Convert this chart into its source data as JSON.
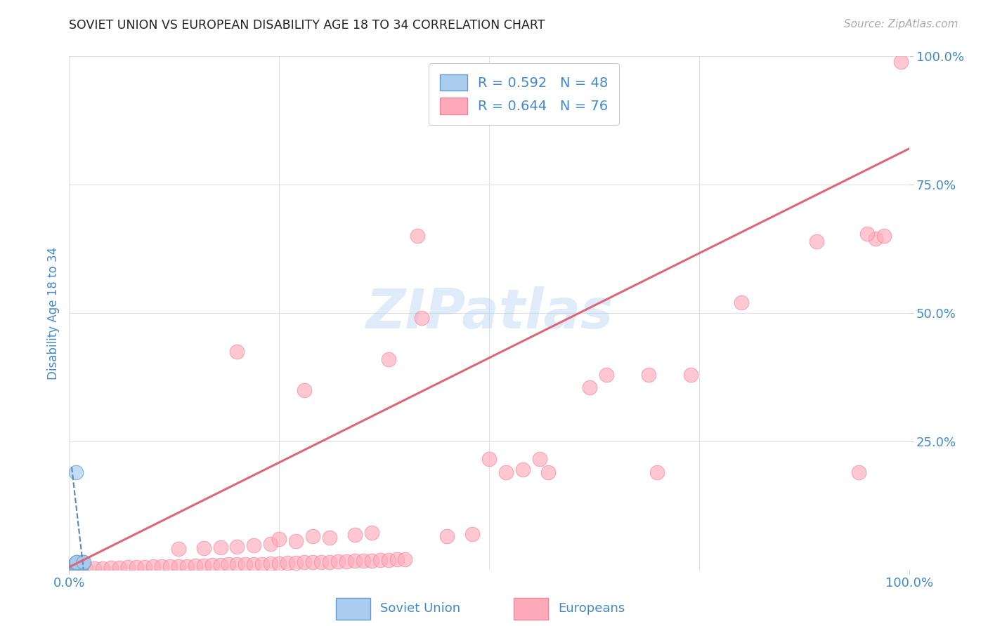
{
  "title": "SOVIET UNION VS EUROPEAN DISABILITY AGE 18 TO 34 CORRELATION CHART",
  "source": "Source: ZipAtlas.com",
  "ylabel": "Disability Age 18 to 34",
  "xlim": [
    0,
    1.0
  ],
  "ylim": [
    0,
    1.0
  ],
  "watermark": "ZIPatlas",
  "soviet_fill_color": "#aaccee",
  "soviet_edge_color": "#6699cc",
  "european_fill_color": "#ffaabb",
  "european_edge_color": "#ee8899",
  "soviet_R": 0.592,
  "soviet_N": 48,
  "european_R": 0.644,
  "european_N": 76,
  "soviet_line_color": "#5588bb",
  "european_line_color": "#dd6677",
  "grid_color": "#e0e0e0",
  "title_color": "#222222",
  "axis_label_color": "#4488cc",
  "tick_label_color": "#4488cc",
  "soviet_scatter": [
    [
      0.003,
      0.001
    ],
    [
      0.004,
      0.001
    ],
    [
      0.005,
      0.001
    ],
    [
      0.006,
      0.001
    ],
    [
      0.007,
      0.001
    ],
    [
      0.008,
      0.001
    ],
    [
      0.009,
      0.001
    ],
    [
      0.01,
      0.001
    ],
    [
      0.011,
      0.001
    ],
    [
      0.012,
      0.001
    ],
    [
      0.013,
      0.001
    ],
    [
      0.014,
      0.001
    ],
    [
      0.003,
      0.002
    ],
    [
      0.005,
      0.002
    ],
    [
      0.007,
      0.002
    ],
    [
      0.009,
      0.002
    ],
    [
      0.011,
      0.002
    ],
    [
      0.013,
      0.002
    ],
    [
      0.003,
      0.003
    ],
    [
      0.006,
      0.003
    ],
    [
      0.009,
      0.003
    ],
    [
      0.012,
      0.003
    ],
    [
      0.004,
      0.004
    ],
    [
      0.007,
      0.004
    ],
    [
      0.01,
      0.004
    ],
    [
      0.004,
      0.005
    ],
    [
      0.008,
      0.005
    ],
    [
      0.005,
      0.006
    ],
    [
      0.009,
      0.006
    ],
    [
      0.005,
      0.007
    ],
    [
      0.01,
      0.007
    ],
    [
      0.006,
      0.008
    ],
    [
      0.011,
      0.008
    ],
    [
      0.006,
      0.009
    ],
    [
      0.012,
      0.009
    ],
    [
      0.007,
      0.01
    ],
    [
      0.013,
      0.01
    ],
    [
      0.007,
      0.011
    ],
    [
      0.014,
      0.011
    ],
    [
      0.008,
      0.012
    ],
    [
      0.015,
      0.012
    ],
    [
      0.008,
      0.013
    ],
    [
      0.015,
      0.013
    ],
    [
      0.009,
      0.014
    ],
    [
      0.016,
      0.014
    ],
    [
      0.009,
      0.015
    ],
    [
      0.017,
      0.015
    ],
    [
      0.008,
      0.19
    ]
  ],
  "european_scatter": [
    [
      0.01,
      0.001
    ],
    [
      0.02,
      0.002
    ],
    [
      0.03,
      0.003
    ],
    [
      0.04,
      0.003
    ],
    [
      0.05,
      0.004
    ],
    [
      0.06,
      0.004
    ],
    [
      0.07,
      0.005
    ],
    [
      0.08,
      0.005
    ],
    [
      0.09,
      0.005
    ],
    [
      0.1,
      0.006
    ],
    [
      0.11,
      0.006
    ],
    [
      0.12,
      0.007
    ],
    [
      0.13,
      0.007
    ],
    [
      0.14,
      0.007
    ],
    [
      0.15,
      0.008
    ],
    [
      0.16,
      0.008
    ],
    [
      0.17,
      0.009
    ],
    [
      0.18,
      0.009
    ],
    [
      0.19,
      0.01
    ],
    [
      0.2,
      0.01
    ],
    [
      0.21,
      0.01
    ],
    [
      0.22,
      0.011
    ],
    [
      0.23,
      0.011
    ],
    [
      0.24,
      0.012
    ],
    [
      0.25,
      0.012
    ],
    [
      0.26,
      0.013
    ],
    [
      0.27,
      0.013
    ],
    [
      0.28,
      0.014
    ],
    [
      0.29,
      0.014
    ],
    [
      0.3,
      0.015
    ],
    [
      0.31,
      0.015
    ],
    [
      0.32,
      0.016
    ],
    [
      0.33,
      0.016
    ],
    [
      0.34,
      0.017
    ],
    [
      0.35,
      0.017
    ],
    [
      0.36,
      0.018
    ],
    [
      0.37,
      0.019
    ],
    [
      0.38,
      0.019
    ],
    [
      0.39,
      0.02
    ],
    [
      0.4,
      0.02
    ],
    [
      0.13,
      0.04
    ],
    [
      0.16,
      0.042
    ],
    [
      0.18,
      0.044
    ],
    [
      0.2,
      0.045
    ],
    [
      0.22,
      0.048
    ],
    [
      0.24,
      0.05
    ],
    [
      0.25,
      0.06
    ],
    [
      0.27,
      0.055
    ],
    [
      0.29,
      0.065
    ],
    [
      0.31,
      0.062
    ],
    [
      0.34,
      0.068
    ],
    [
      0.36,
      0.072
    ],
    [
      0.2,
      0.425
    ],
    [
      0.28,
      0.35
    ],
    [
      0.38,
      0.41
    ],
    [
      0.42,
      0.49
    ],
    [
      0.45,
      0.065
    ],
    [
      0.48,
      0.07
    ],
    [
      0.52,
      0.19
    ],
    [
      0.54,
      0.195
    ],
    [
      0.57,
      0.19
    ],
    [
      0.62,
      0.355
    ],
    [
      0.64,
      0.38
    ],
    [
      0.69,
      0.38
    ],
    [
      0.7,
      0.19
    ],
    [
      0.74,
      0.38
    ],
    [
      0.8,
      0.52
    ],
    [
      0.5,
      0.215
    ],
    [
      0.56,
      0.215
    ],
    [
      0.89,
      0.64
    ],
    [
      0.96,
      0.645
    ],
    [
      0.94,
      0.19
    ],
    [
      0.97,
      0.65
    ],
    [
      0.99,
      0.99
    ],
    [
      0.415,
      0.65
    ],
    [
      0.95,
      0.655
    ]
  ],
  "soviet_line_x": [
    0.003,
    0.017
  ],
  "soviet_line_y": [
    0.2,
    0.001
  ],
  "european_line_x": [
    0.0,
    1.0
  ],
  "european_line_y": [
    0.005,
    0.82
  ]
}
